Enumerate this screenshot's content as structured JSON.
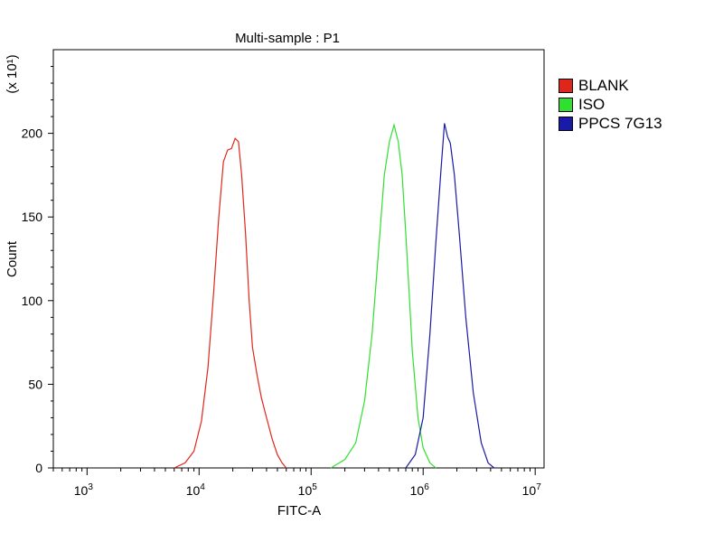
{
  "chart_data": {
    "type": "line",
    "title": "Multi-sample : P1",
    "xlabel": "FITC-A",
    "ylabel": "Count",
    "y_multiplier": "(x 10¹)",
    "x_scale": "log",
    "xlim": [
      500,
      12000000
    ],
    "ylim": [
      0,
      250
    ],
    "x_ticks": [
      1000,
      10000,
      100000,
      1000000,
      10000000
    ],
    "x_tick_labels": [
      {
        "base": "10",
        "exp": "3"
      },
      {
        "base": "10",
        "exp": "4"
      },
      {
        "base": "10",
        "exp": "5"
      },
      {
        "base": "10",
        "exp": "6"
      },
      {
        "base": "10",
        "exp": "7"
      }
    ],
    "y_ticks": [
      0,
      50,
      100,
      150,
      200
    ],
    "y_tick_labels": [
      "0",
      "50",
      "100",
      "150",
      "200"
    ],
    "legend_position": "right",
    "grid": false,
    "series": [
      {
        "name": "BLANK",
        "color": "#e0261b",
        "x": [
          6000,
          7500,
          9000,
          10500,
          12000,
          13500,
          15000,
          16500,
          18000,
          19500,
          21000,
          22500,
          24000,
          26000,
          28000,
          30000,
          33000,
          36000,
          40000,
          45000,
          50000,
          55000,
          60000
        ],
        "y": [
          0,
          3,
          10,
          28,
          60,
          105,
          150,
          183,
          190,
          191,
          197,
          195,
          175,
          140,
          100,
          72,
          55,
          42,
          30,
          17,
          8,
          3,
          0
        ]
      },
      {
        "name": "ISO",
        "color": "#2fe02f",
        "x": [
          150000,
          200000,
          250000,
          300000,
          350000,
          400000,
          450000,
          500000,
          550000,
          600000,
          650000,
          700000,
          750000,
          800000,
          900000,
          1000000,
          1150000,
          1300000
        ],
        "y": [
          0,
          5,
          15,
          40,
          80,
          130,
          175,
          195,
          205,
          195,
          175,
          140,
          105,
          70,
          30,
          12,
          3,
          0
        ]
      },
      {
        "name": "PPCS 7G13",
        "color": "#1a1aa8",
        "x": [
          700000,
          850000,
          1000000,
          1150000,
          1300000,
          1450000,
          1550000,
          1650000,
          1750000,
          1900000,
          2100000,
          2400000,
          2800000,
          3300000,
          3800000,
          4300000
        ],
        "y": [
          0,
          8,
          30,
          80,
          135,
          180,
          206,
          198,
          194,
          175,
          140,
          90,
          45,
          15,
          3,
          0
        ]
      }
    ]
  }
}
